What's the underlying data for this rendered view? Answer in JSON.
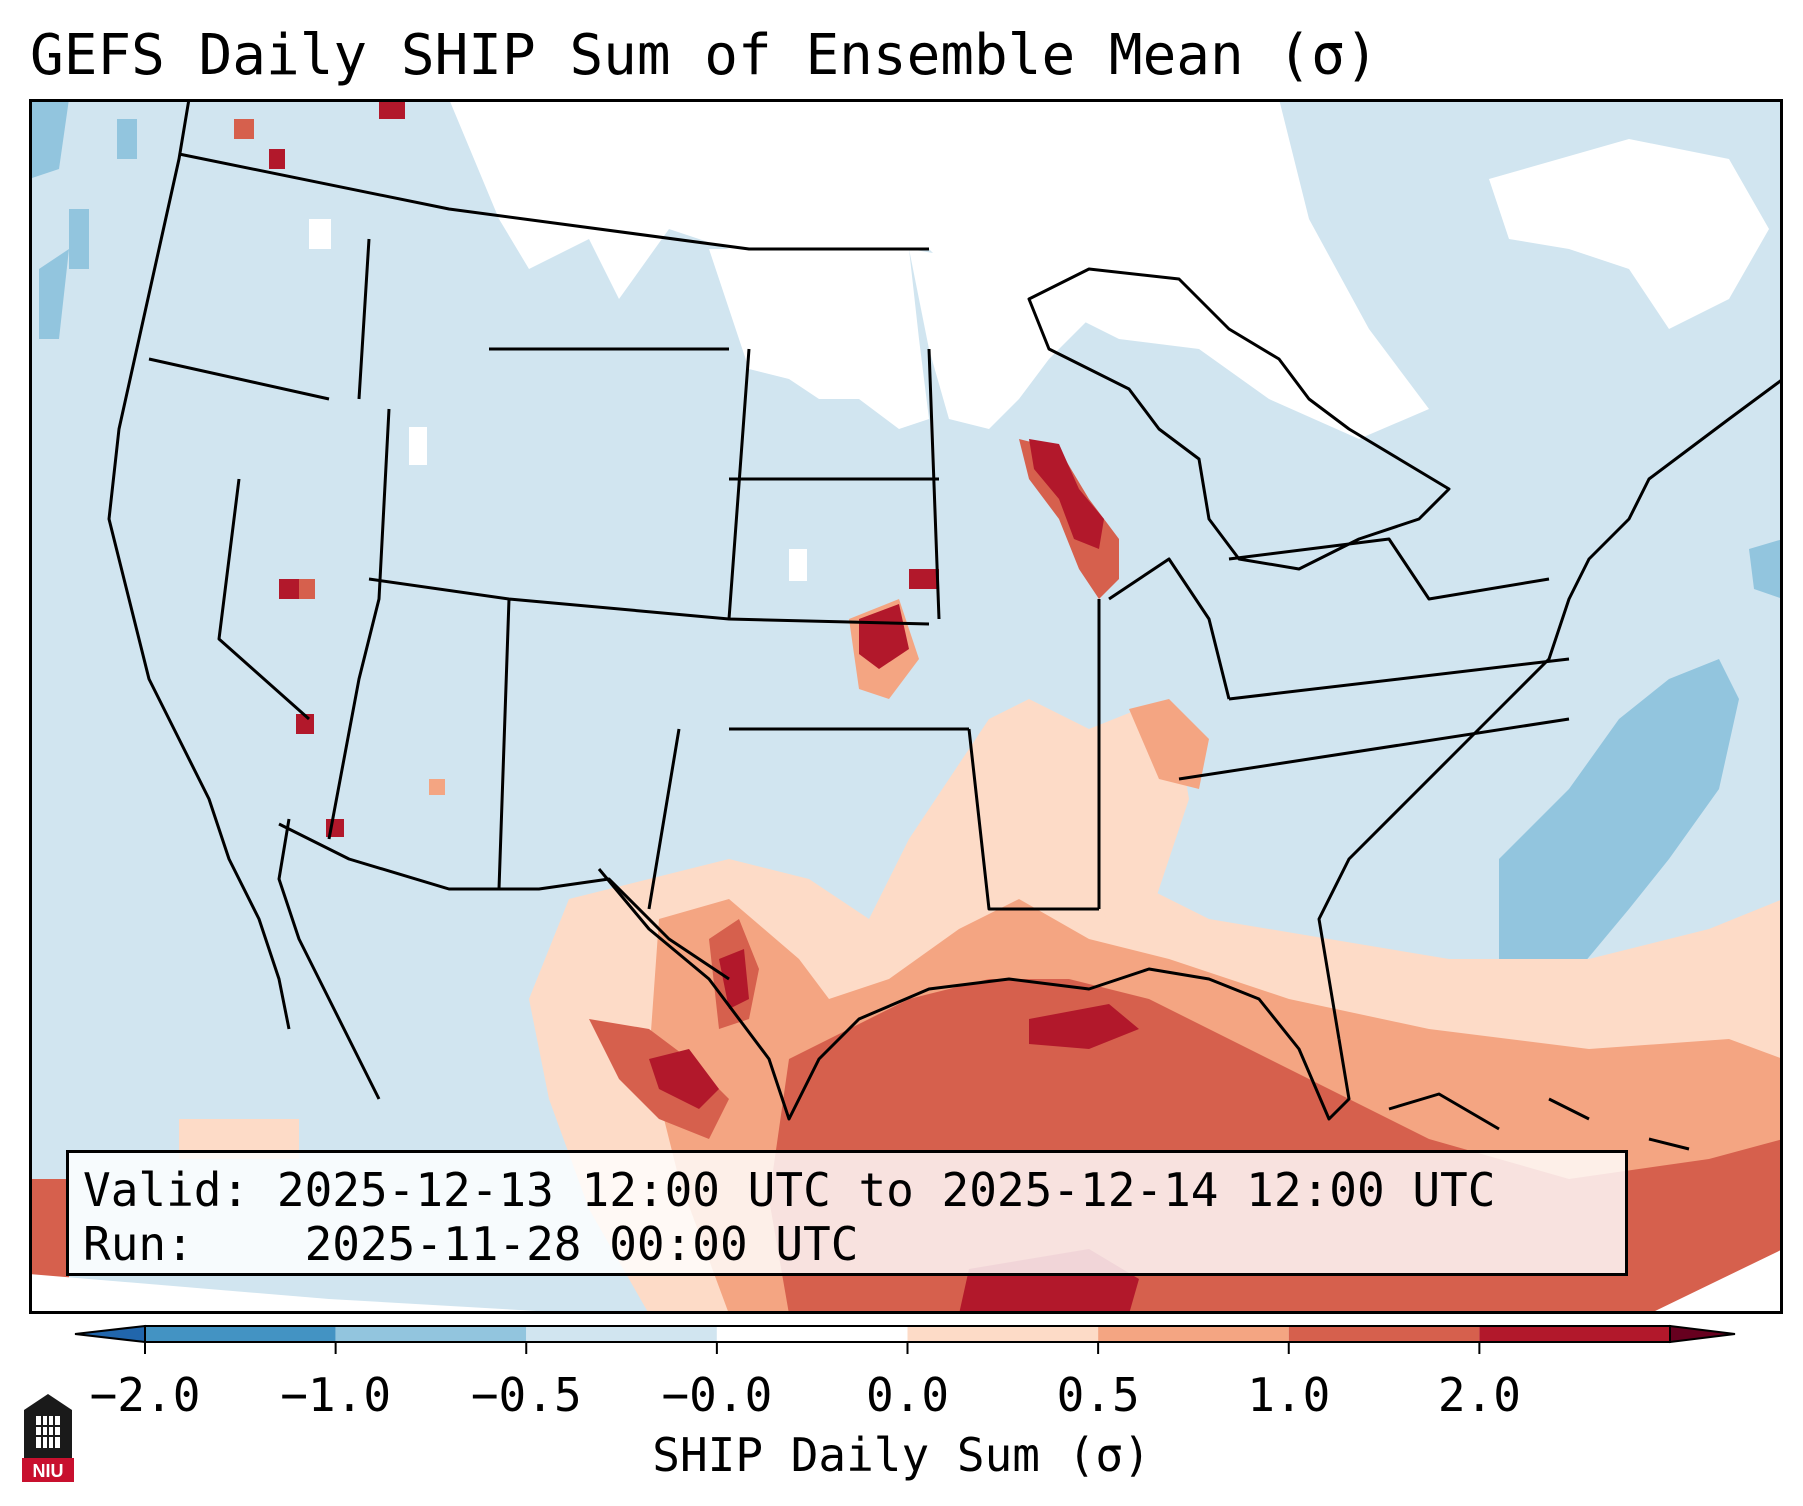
{
  "title": "GEFS Daily SHIP Sum of Ensemble Mean (σ)",
  "info": {
    "valid_label": "Valid:",
    "valid_value": "2025-12-13 12:00 UTC to 2025-12-14 12:00 UTC",
    "run_label": "Run:",
    "run_value": "2025-11-28 00:00 UTC"
  },
  "colorbar": {
    "label": "SHIP Daily Sum (σ)",
    "ticks": [
      "−2.0",
      "−1.0",
      "−0.5",
      "−0.0",
      "0.0",
      "0.5",
      "1.0",
      "2.0"
    ],
    "colors": [
      "#4393c3",
      "#92c5de",
      "#d1e5f0",
      "#ffffff",
      "#fddbc7",
      "#f4a582",
      "#d6604d",
      "#b2182b"
    ]
  },
  "map_colors": {
    "ocean_land_base": "#d1e5f0",
    "no_signal": "#ffffff",
    "light_warm": "#fddbc7",
    "warm": "#f4a582",
    "strong_warm": "#d6604d",
    "very_strong": "#b2182b",
    "cool": "#92c5de"
  },
  "logo": {
    "text": "NIU"
  }
}
